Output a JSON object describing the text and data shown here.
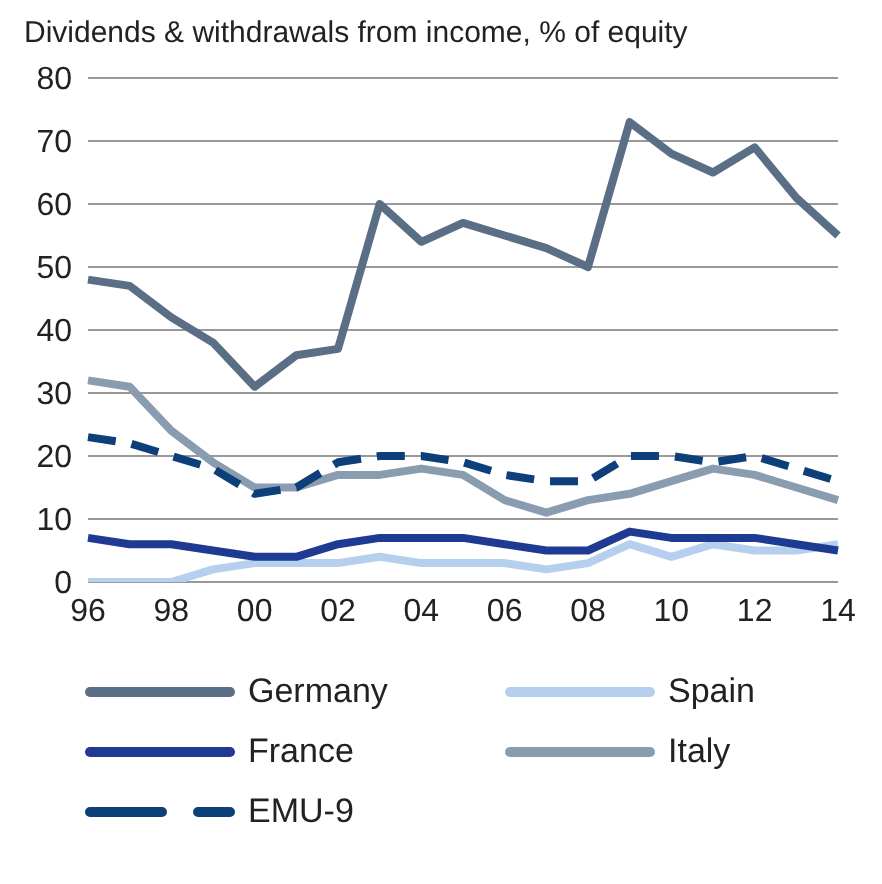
{
  "chart_data": {
    "type": "line",
    "title": "Dividends & withdrawals from income, % of equity",
    "categories": [
      "96",
      null,
      "98",
      null,
      "00",
      null,
      "02",
      null,
      "04",
      null,
      "06",
      null,
      "08",
      null,
      "10",
      null,
      "12",
      null,
      "14"
    ],
    "series": [
      {
        "name": "Germany",
        "color": "#5a6e85",
        "values": [
          48,
          47,
          42,
          38,
          31,
          36,
          37,
          60,
          54,
          57,
          55,
          53,
          50,
          73,
          68,
          65,
          69,
          61,
          55
        ]
      },
      {
        "name": "Spain",
        "color": "#b4d0ee",
        "values": [
          0,
          0,
          0,
          2,
          3,
          3,
          3,
          4,
          3,
          3,
          3,
          2,
          3,
          6,
          4,
          6,
          5,
          5,
          6
        ]
      },
      {
        "name": "France",
        "color": "#1f3a93",
        "values": [
          7,
          6,
          6,
          5,
          4,
          4,
          6,
          7,
          7,
          7,
          6,
          5,
          5,
          8,
          7,
          7,
          7,
          6,
          5
        ]
      },
      {
        "name": "Italy",
        "color": "#8a9db0",
        "values": [
          32,
          31,
          24,
          19,
          15,
          15,
          17,
          17,
          18,
          17,
          13,
          11,
          13,
          14,
          16,
          18,
          17,
          15,
          13
        ]
      },
      {
        "name": "EMU-9",
        "color": "#0d3f7a",
        "line_style": "dashed",
        "values": [
          23,
          22,
          20,
          18,
          14,
          15,
          19,
          20,
          20,
          19,
          17,
          16,
          16,
          20,
          20,
          19,
          20,
          18,
          16
        ]
      }
    ],
    "ylim": [
      0,
      80
    ],
    "yticks": [
      0,
      10,
      20,
      30,
      40,
      50,
      60,
      70,
      80
    ],
    "grid": "y",
    "legend": "bottom",
    "marker": "none",
    "line_style": "solid"
  }
}
